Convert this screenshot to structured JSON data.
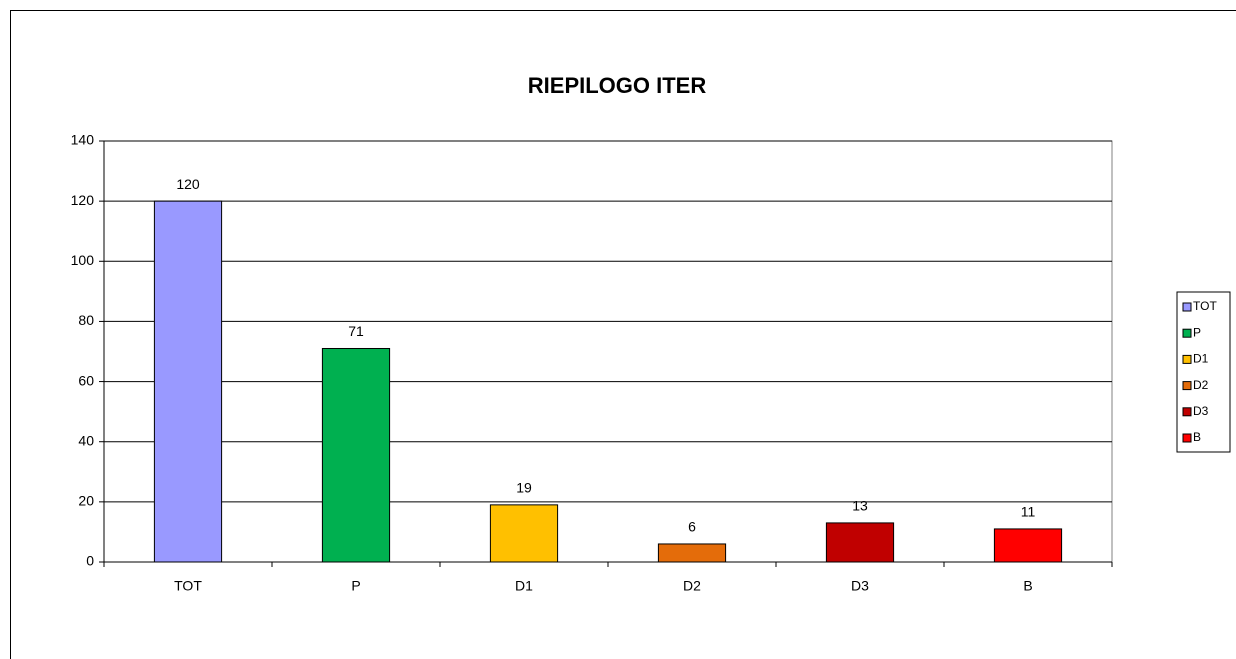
{
  "chart_data": {
    "type": "bar",
    "title": "RIEPILOGO ITER",
    "categories": [
      "TOT",
      "P",
      "D1",
      "D2",
      "D3",
      "B"
    ],
    "values": [
      120,
      71,
      19,
      6,
      13,
      11
    ],
    "colors": [
      "#9999ff",
      "#00b050",
      "#ffc000",
      "#e46c0a",
      "#c00000",
      "#ff0000"
    ],
    "ylim": [
      0,
      140
    ],
    "yticks": [
      0,
      20,
      40,
      60,
      80,
      100,
      120,
      140
    ],
    "grid": true,
    "legend": "right"
  }
}
